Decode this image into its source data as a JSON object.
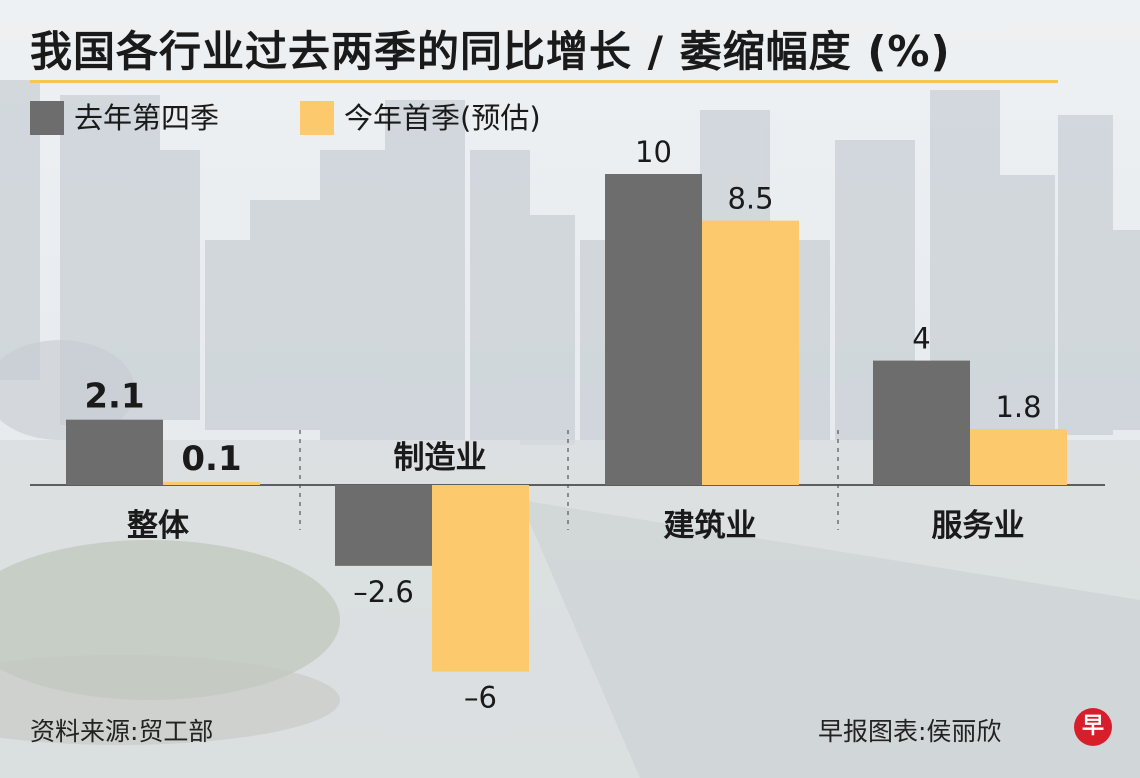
{
  "title": "我国各行业过去两季的同比增长 / 萎缩幅度 (%)",
  "colors": {
    "series1": "#6d6d6d",
    "series2": "#fcc96c",
    "accent_rule": "#f2c94c",
    "logo": "#d81e2b"
  },
  "footer": {
    "source": "资料来源:贸工部",
    "credit": "早报图表:侯丽欣",
    "logo_text": "早"
  },
  "chart_data": {
    "type": "bar",
    "title": "我国各行业过去两季的同比增长 / 萎缩幅度 (%)",
    "categories": [
      "整体",
      "制造业",
      "建筑业",
      "服务业"
    ],
    "series": [
      {
        "name": "去年第四季",
        "values": [
          2.1,
          -2.6,
          10,
          4
        ]
      },
      {
        "name": "今年首季(预估)",
        "values": [
          0.1,
          -6,
          8.5,
          1.8
        ]
      }
    ],
    "data_labels": [
      [
        "2.1",
        "–2.6",
        "10",
        "4"
      ],
      [
        "0.1",
        "–6",
        "8.5",
        "1.8"
      ]
    ],
    "ylim": [
      -6,
      10
    ],
    "grid": false,
    "legend_position": "top-left"
  }
}
